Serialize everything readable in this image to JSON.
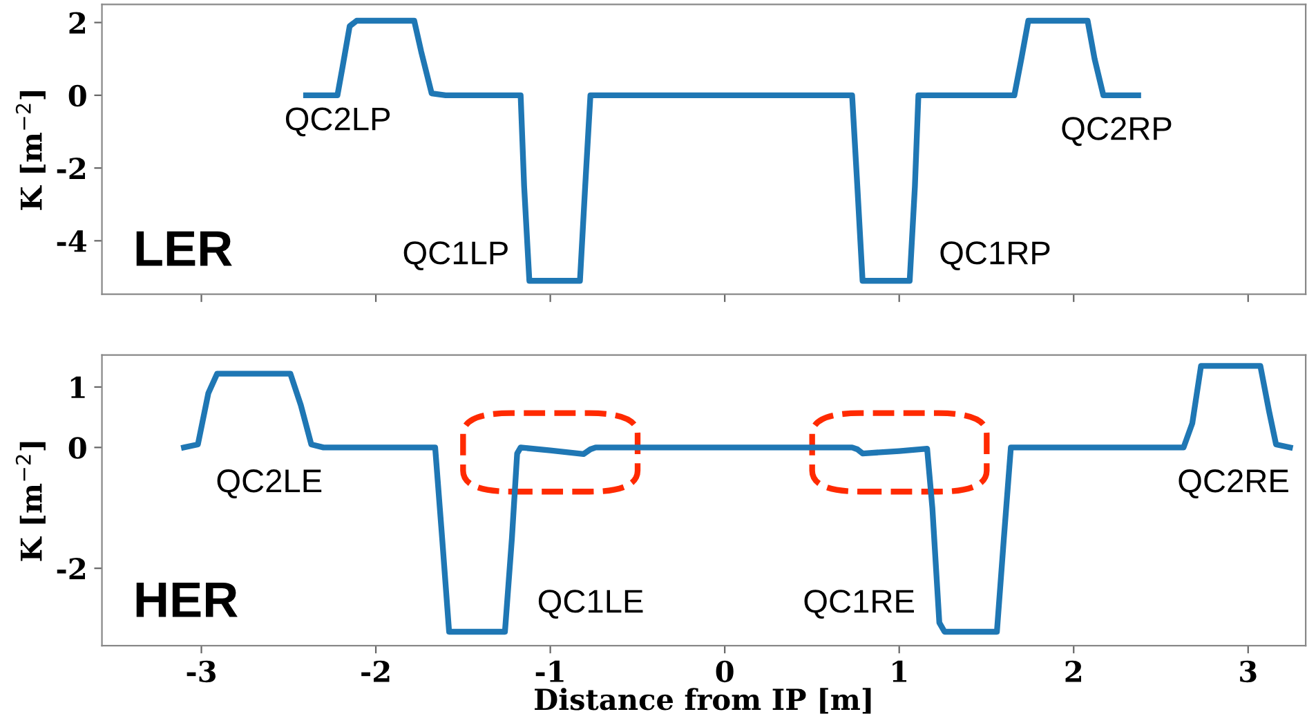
{
  "chart_data": [
    {
      "type": "line",
      "ylabel": "K [m$^{−2}$]",
      "xlim": [
        -3.57,
        3.33
      ],
      "xticks": [
        -3,
        -2,
        -1,
        0,
        1,
        2,
        3
      ],
      "ylim": [
        -5.47,
        2.5
      ],
      "yticks": [
        -4,
        -2,
        0,
        2
      ],
      "tick_labels": "y",
      "grid": false,
      "legend": false,
      "series": [
        {
          "color": "#1f77b4",
          "x": [
            -2.4,
            -2.22,
            -2.19,
            -2.15,
            -2.11,
            -1.78,
            -1.74,
            -1.68,
            -1.6,
            -1.17,
            -1.15,
            -1.12,
            -0.83,
            -0.8,
            -0.77,
            -0.7,
            0.7,
            0.73,
            0.76,
            0.79,
            1.06,
            1.09,
            1.11,
            1.2,
            1.66,
            1.7,
            1.74,
            2.08,
            2.12,
            2.17,
            2.37
          ],
          "values": [
            0,
            0,
            0.8,
            1.9,
            2.05,
            2.05,
            1.2,
            0.05,
            0,
            0,
            -2.5,
            -5.1,
            -5.1,
            -2.5,
            0,
            0,
            0,
            0,
            -2.5,
            -5.1,
            -5.1,
            -2.5,
            0,
            0,
            0,
            1.0,
            2.05,
            2.05,
            1.0,
            0,
            0
          ]
        }
      ],
      "annotations": [
        "QC2LP",
        "QC1LP",
        "QC1RP",
        "QC2RP",
        "LER"
      ]
    },
    {
      "type": "line",
      "xlabel": "Distance from IP [m]",
      "ylabel": "K [m$^{−2}$]",
      "xlim": [
        -3.57,
        3.33
      ],
      "xticks": [
        -3,
        -2,
        -1,
        0,
        1,
        2,
        3
      ],
      "ylim": [
        -3.28,
        1.53
      ],
      "yticks": [
        -2,
        0,
        1
      ],
      "grid": false,
      "legend": false,
      "series": [
        {
          "color": "#1f77b4",
          "x": [
            -3.1,
            -3.02,
            -2.96,
            -2.91,
            -2.49,
            -2.43,
            -2.37,
            -2.3,
            -1.66,
            -1.62,
            -1.58,
            -1.26,
            -1.22,
            -1.19,
            -1.17,
            -1.0,
            -0.81,
            -0.77,
            -0.74,
            0.73,
            0.76,
            0.79,
            1.0,
            1.16,
            1.19,
            1.23,
            1.26,
            1.56,
            1.6,
            1.64,
            2.63,
            2.68,
            2.73,
            3.07,
            3.12,
            3.16,
            3.24
          ],
          "values": [
            0,
            0.05,
            0.9,
            1.22,
            1.22,
            0.7,
            0.05,
            0,
            0,
            -1.5,
            -3.05,
            -3.05,
            -1.5,
            -0.1,
            0,
            -0.05,
            -0.11,
            -0.03,
            0,
            0,
            -0.03,
            -0.1,
            -0.06,
            -0.02,
            -1.0,
            -2.9,
            -3.05,
            -3.05,
            -1.5,
            0,
            0,
            0.4,
            1.35,
            1.35,
            0.6,
            0.05,
            0
          ]
        }
      ],
      "annotations": [
        "QC2LE",
        "QC1LE",
        "QC1RE",
        "QC2RE",
        "HER"
      ]
    }
  ]
}
